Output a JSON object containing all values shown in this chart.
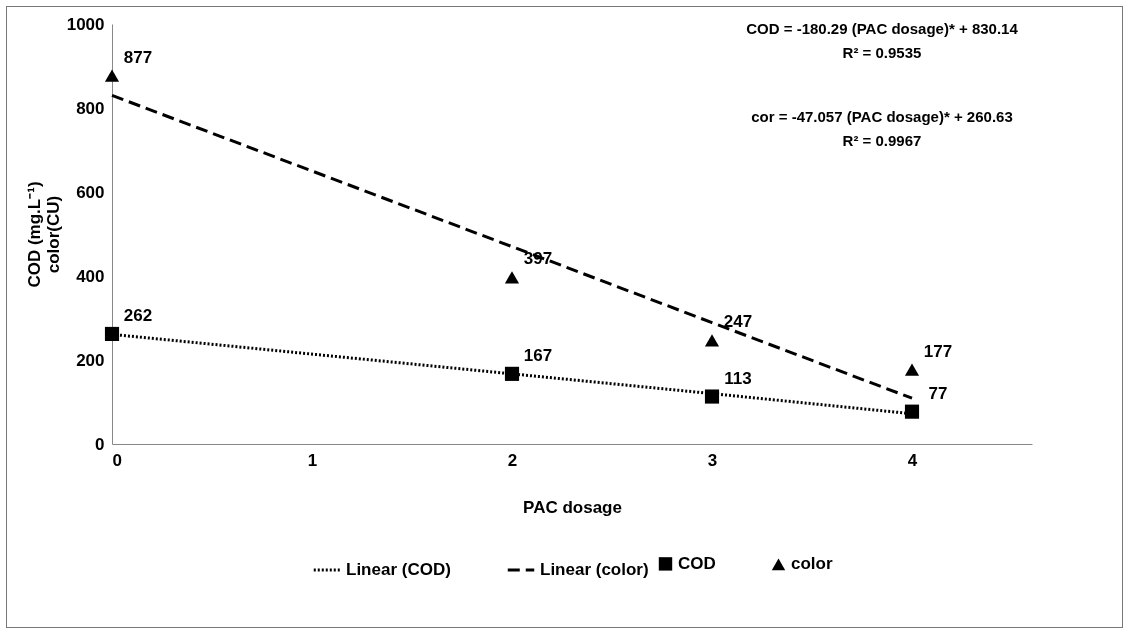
{
  "chart_data": {
    "type": "scatter",
    "xlabel": "PAC dosage",
    "ylabel": "COD (mg.L⁻¹)\ncolor(CU)",
    "x": [
      0,
      2,
      3,
      4
    ],
    "xlim": [
      0,
      4.6
    ],
    "xticks": [
      0,
      1,
      2,
      3,
      4
    ],
    "ylim": [
      0,
      1000
    ],
    "yticks": [
      0,
      200,
      400,
      600,
      800,
      1000
    ],
    "grid": false,
    "legend": "bottom",
    "series": [
      {
        "name": "COD",
        "marker": "square",
        "color": "#000000",
        "values": [
          262,
          167,
          113,
          77
        ],
        "value_labels": [
          "262",
          "167",
          "113",
          "77"
        ]
      },
      {
        "name": "color",
        "marker": "triangle",
        "color": "#000000",
        "values": [
          877,
          397,
          247,
          177
        ],
        "value_labels": [
          "877",
          "397",
          "247",
          "177"
        ]
      },
      {
        "name": "Linear (COD)",
        "type": "line",
        "line_style": "dotted",
        "color": "#000000",
        "values": [
          261,
          167,
          120,
          72
        ]
      },
      {
        "name": "Linear (color)",
        "type": "line",
        "line_style": "dashed",
        "color": "#000000",
        "values": [
          830,
          470,
          289,
          109
        ]
      }
    ],
    "annotations": [
      "COD = -180.29 (PAC dosage)* + 830.14",
      "R² = 0.9535",
      "cor = -47.057 (PAC dosage)* + 260.63",
      "R² = 0.9967"
    ]
  }
}
